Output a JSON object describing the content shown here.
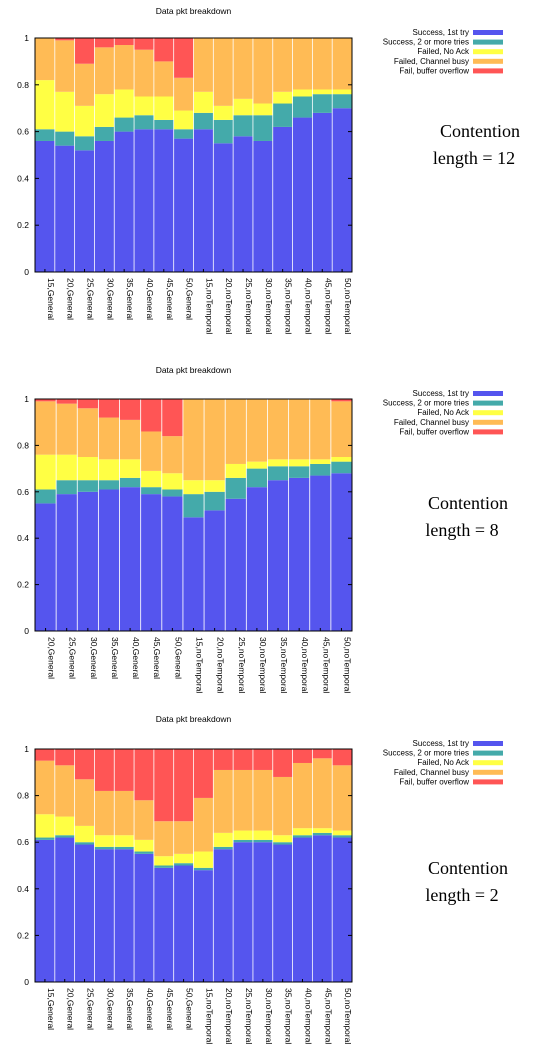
{
  "colors": {
    "success_1st": "#5555ee",
    "success_2plus": "#44aaaa",
    "failed_noack": "#ffff44",
    "failed_busy": "#ffbb55",
    "fail_overflow": "#ff5555",
    "axis": "#000000"
  },
  "chart_data": [
    {
      "type": "bar",
      "stacked": true,
      "title": "Data pkt breakdown",
      "annotation": [
        "Contention",
        "length = 12"
      ],
      "categories": [
        "15,General",
        "20,General",
        "25,General",
        "30,General",
        "35,General",
        "40,General",
        "45,General",
        "50,General",
        "15,noTemporal",
        "20,noTemporal",
        "25,noTemporal",
        "30,noTemporal",
        "35,noTemporal",
        "40,noTemporal",
        "45,noTemporal",
        "50,noTemporal"
      ],
      "ylim": [
        0,
        1
      ],
      "yticks": [
        "0",
        "0.2",
        "0.4",
        "0.6",
        "0.8",
        "1"
      ],
      "legend_position": "right",
      "series": [
        {
          "name": "Success, 1st try",
          "values": [
            0.56,
            0.54,
            0.52,
            0.56,
            0.6,
            0.61,
            0.61,
            0.57,
            0.61,
            0.55,
            0.58,
            0.56,
            0.62,
            0.66,
            0.68,
            0.7
          ]
        },
        {
          "name": "Success, 2 or more tries",
          "values": [
            0.05,
            0.06,
            0.06,
            0.06,
            0.06,
            0.06,
            0.04,
            0.04,
            0.07,
            0.1,
            0.09,
            0.11,
            0.1,
            0.09,
            0.08,
            0.06
          ]
        },
        {
          "name": "Failed, No Ack",
          "values": [
            0.21,
            0.17,
            0.13,
            0.14,
            0.12,
            0.08,
            0.1,
            0.08,
            0.09,
            0.06,
            0.07,
            0.05,
            0.05,
            0.03,
            0.02,
            0.02
          ]
        },
        {
          "name": "Failed, Channel busy",
          "values": [
            0.18,
            0.22,
            0.18,
            0.2,
            0.19,
            0.2,
            0.15,
            0.14,
            0.23,
            0.29,
            0.26,
            0.28,
            0.23,
            0.22,
            0.22,
            0.22
          ]
        },
        {
          "name": "Fail, buffer overflow",
          "values": [
            0.0,
            0.01,
            0.11,
            0.04,
            0.03,
            0.05,
            0.1,
            0.17,
            0.0,
            0.0,
            0.0,
            0.0,
            0.0,
            0.0,
            0.0,
            0.0
          ]
        }
      ]
    },
    {
      "type": "bar",
      "stacked": true,
      "title": "Data pkt breakdown",
      "annotation": [
        "Contention",
        "length = 8"
      ],
      "categories": [
        "20,General",
        "25,General",
        "30,General",
        "35,General",
        "40,General",
        "45,General",
        "50,General",
        "15,noTemporal",
        "20,noTemporal",
        "25,noTemporal",
        "30,noTemporal",
        "35,noTemporal",
        "40,noTemporal",
        "45,noTemporal",
        "50,noTemporal"
      ],
      "ylim": [
        0,
        1
      ],
      "yticks": [
        "0",
        "0.2",
        "0.4",
        "0.6",
        "0.8",
        "1"
      ],
      "legend_position": "right",
      "series": [
        {
          "name": "Success, 1st try",
          "values": [
            0.55,
            0.59,
            0.6,
            0.61,
            0.62,
            0.59,
            0.58,
            0.49,
            0.52,
            0.57,
            0.62,
            0.65,
            0.66,
            0.67,
            0.68
          ]
        },
        {
          "name": "Success, 2 or more tries",
          "values": [
            0.06,
            0.06,
            0.05,
            0.04,
            0.04,
            0.03,
            0.03,
            0.1,
            0.08,
            0.09,
            0.08,
            0.06,
            0.05,
            0.05,
            0.05
          ]
        },
        {
          "name": "Failed, No Ack",
          "values": [
            0.15,
            0.11,
            0.1,
            0.09,
            0.08,
            0.07,
            0.07,
            0.06,
            0.05,
            0.06,
            0.03,
            0.03,
            0.03,
            0.02,
            0.02
          ]
        },
        {
          "name": "Failed, Channel busy",
          "values": [
            0.23,
            0.22,
            0.21,
            0.18,
            0.17,
            0.17,
            0.16,
            0.35,
            0.35,
            0.28,
            0.27,
            0.26,
            0.26,
            0.26,
            0.24
          ]
        },
        {
          "name": "Fail, buffer overflow",
          "values": [
            0.01,
            0.02,
            0.04,
            0.08,
            0.09,
            0.14,
            0.16,
            0.0,
            0.0,
            0.0,
            0.0,
            0.0,
            0.0,
            0.0,
            0.01
          ]
        }
      ]
    },
    {
      "type": "bar",
      "stacked": true,
      "title": "Data pkt breakdown",
      "annotation": [
        "Contention",
        "length = 2"
      ],
      "categories": [
        "15,General",
        "20,General",
        "25,General",
        "30,General",
        "35,General",
        "40,General",
        "45,General",
        "50,General",
        "15,noTemporal",
        "20,noTemporal",
        "25,noTemporal",
        "30,noTemporal",
        "35,noTemporal",
        "40,noTemporal",
        "45,noTemporal",
        "50,noTemporal"
      ],
      "ylim": [
        0,
        1
      ],
      "yticks": [
        "0",
        "0.2",
        "0.4",
        "0.6",
        "0.8",
        "1"
      ],
      "legend_position": "right",
      "series": [
        {
          "name": "Success, 1st try",
          "values": [
            0.61,
            0.62,
            0.59,
            0.57,
            0.57,
            0.55,
            0.49,
            0.5,
            0.48,
            0.57,
            0.6,
            0.6,
            0.59,
            0.62,
            0.63,
            0.62
          ]
        },
        {
          "name": "Success, 2 or more tries",
          "values": [
            0.01,
            0.01,
            0.01,
            0.01,
            0.01,
            0.01,
            0.01,
            0.01,
            0.01,
            0.01,
            0.01,
            0.01,
            0.01,
            0.01,
            0.01,
            0.01
          ]
        },
        {
          "name": "Failed, No Ack",
          "values": [
            0.1,
            0.08,
            0.07,
            0.05,
            0.05,
            0.05,
            0.04,
            0.04,
            0.07,
            0.06,
            0.04,
            0.04,
            0.03,
            0.03,
            0.02,
            0.02
          ]
        },
        {
          "name": "Failed, Channel busy",
          "values": [
            0.23,
            0.22,
            0.2,
            0.19,
            0.19,
            0.17,
            0.15,
            0.14,
            0.23,
            0.27,
            0.26,
            0.26,
            0.25,
            0.28,
            0.3,
            0.28
          ]
        },
        {
          "name": "Fail, buffer overflow",
          "values": [
            0.05,
            0.07,
            0.13,
            0.18,
            0.18,
            0.22,
            0.31,
            0.31,
            0.21,
            0.09,
            0.09,
            0.09,
            0.12,
            0.06,
            0.04,
            0.07
          ]
        }
      ]
    }
  ]
}
